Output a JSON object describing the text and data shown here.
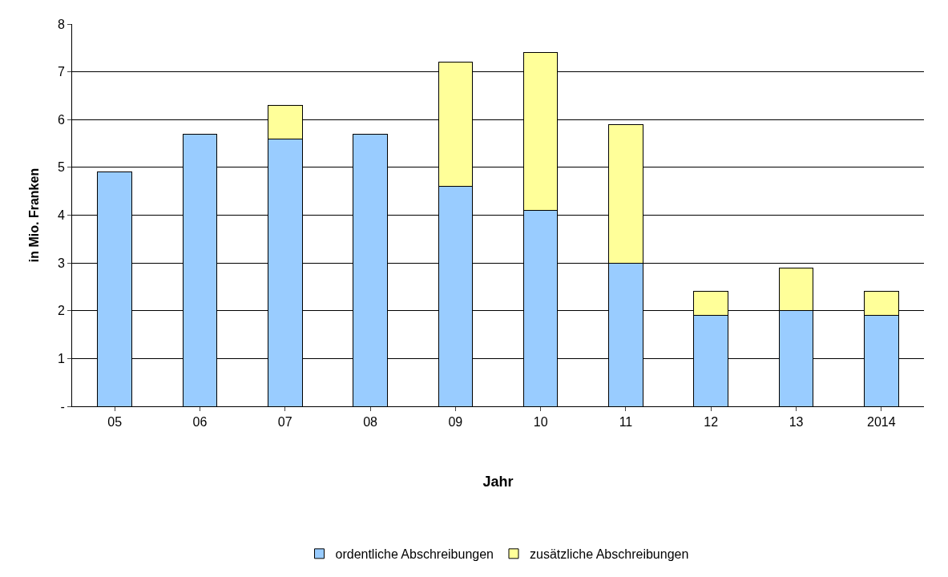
{
  "chart_data": {
    "type": "bar",
    "stacked": true,
    "xlabel": "Jahr",
    "ylabel": "in Mio. Franken",
    "categories": [
      "05",
      "06",
      "07",
      "08",
      "09",
      "10",
      "11",
      "12",
      "13",
      "2014"
    ],
    "series": [
      {
        "name": "ordentliche Abschreibungen",
        "color": "#99ccff",
        "values": [
          4.9,
          5.7,
          5.6,
          5.7,
          4.6,
          4.1,
          3.0,
          1.9,
          2.0,
          1.9
        ]
      },
      {
        "name": "zusätzliche Abschreibungen",
        "color": "#ffff99",
        "values": [
          null,
          null,
          0.7,
          null,
          2.6,
          3.3,
          2.9,
          0.5,
          0.9,
          0.5
        ]
      }
    ],
    "ylim": [
      0,
      8
    ],
    "yticks": [
      {
        "value": 0,
        "label": "-"
      },
      1,
      2,
      3,
      4,
      5,
      6,
      7,
      8
    ],
    "grid": "y",
    "legend": "bottom"
  }
}
